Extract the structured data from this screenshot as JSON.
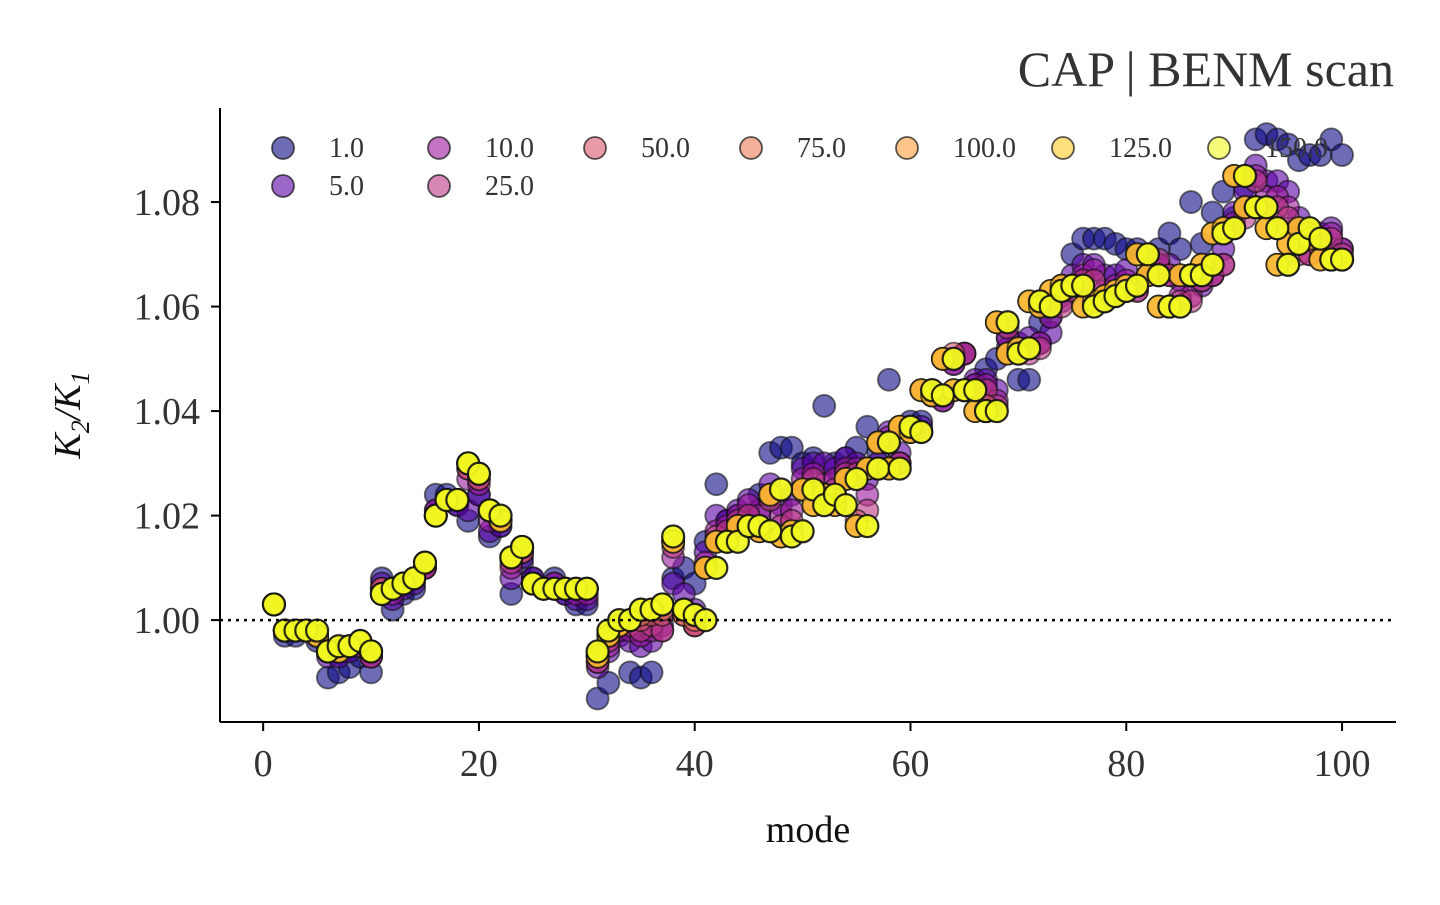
{
  "chart_data": {
    "type": "scatter",
    "title": "CAP | BENM scan",
    "xlabel": "mode",
    "ylabel": "K2/K1",
    "xlim": [
      -4,
      105
    ],
    "ylim": [
      0.9805,
      1.098
    ],
    "x_ticks": [
      0,
      20,
      40,
      60,
      80,
      100
    ],
    "y_ticks": [
      1.0,
      1.02,
      1.04,
      1.06,
      1.08
    ],
    "reference_line": {
      "y": 1.0,
      "style": "dotted",
      "color": "#000000"
    },
    "legend": {
      "placement": "top",
      "columns": 7
    },
    "grid": false,
    "series": [
      {
        "name": "1.0",
        "color": "#0d0887",
        "values": [
          1.003,
          0.997,
          0.997,
          0.998,
          0.996,
          0.989,
          0.99,
          0.991,
          0.993,
          0.99,
          1.008,
          1.002,
          1.005,
          1.006,
          1.01,
          1.024,
          1.024,
          1.022,
          1.019,
          1.024,
          1.016,
          1.018,
          1.005,
          1.011,
          1.008,
          1.006,
          1.008,
          1.005,
          1.003,
          1.003,
          0.985,
          0.988,
          0.998,
          0.99,
          0.989,
          0.99,
          1.001,
          1.008,
          1.01,
          1.007,
          1.015,
          1.026,
          1.019,
          1.02,
          1.02,
          1.024,
          1.032,
          1.033,
          1.033,
          1.03,
          1.031,
          1.041,
          1.03,
          1.031,
          1.033,
          1.037,
          1.032,
          1.046,
          1.03,
          1.038,
          1.038,
          1.044,
          1.043,
          1.05,
          1.051,
          1.045,
          1.048,
          1.05,
          1.054,
          1.046,
          1.046,
          1.057,
          1.058,
          1.064,
          1.07,
          1.073,
          1.073,
          1.073,
          1.072,
          1.071,
          1.071,
          1.066,
          1.071,
          1.074,
          1.071,
          1.08,
          1.072,
          1.078,
          1.082,
          1.077,
          1.083,
          1.092,
          1.093,
          1.092,
          1.091,
          1.088,
          1.089,
          1.089,
          1.092,
          1.089
        ]
      },
      {
        "name": "5.0",
        "color": "#5c01a6",
        "values": [
          1.003,
          0.998,
          0.998,
          0.998,
          0.997,
          0.993,
          0.993,
          0.994,
          0.995,
          0.993,
          1.007,
          1.004,
          1.006,
          1.007,
          1.01,
          1.021,
          1.023,
          1.022,
          1.021,
          1.024,
          1.017,
          1.018,
          1.008,
          1.012,
          1.008,
          1.006,
          1.007,
          1.005,
          1.004,
          1.004,
          0.991,
          0.994,
          0.997,
          0.996,
          0.995,
          0.996,
          0.999,
          1.007,
          1.005,
          1.002,
          1.013,
          1.02,
          1.019,
          1.021,
          1.023,
          1.021,
          1.026,
          1.022,
          1.024,
          1.029,
          1.03,
          1.03,
          1.029,
          1.031,
          1.03,
          1.027,
          1.03,
          1.036,
          1.032,
          1.036,
          1.037,
          1.043,
          1.042,
          1.049,
          1.051,
          1.046,
          1.046,
          1.044,
          1.052,
          1.053,
          1.054,
          1.053,
          1.055,
          1.062,
          1.066,
          1.068,
          1.068,
          1.066,
          1.066,
          1.067,
          1.064,
          1.066,
          1.068,
          1.068,
          1.065,
          1.066,
          1.064,
          1.066,
          1.071,
          1.078,
          1.082,
          1.087,
          1.084,
          1.084,
          1.082,
          1.077,
          1.074,
          1.074,
          1.075,
          1.071
        ]
      },
      {
        "name": "10.0",
        "color": "#9c179e",
        "values": [
          1.003,
          0.998,
          0.998,
          0.998,
          0.997,
          0.994,
          0.994,
          0.995,
          0.995,
          0.993,
          1.006,
          1.005,
          1.007,
          1.008,
          1.01,
          1.021,
          1.023,
          1.023,
          1.027,
          1.026,
          1.019,
          1.019,
          1.01,
          1.013,
          1.007,
          1.006,
          1.007,
          1.006,
          1.005,
          1.005,
          0.992,
          0.995,
          0.998,
          0.998,
          0.997,
          0.998,
          0.998,
          1.012,
          1.002,
          0.999,
          1.011,
          1.017,
          1.018,
          1.02,
          1.022,
          1.02,
          1.024,
          1.02,
          1.021,
          1.027,
          1.028,
          1.026,
          1.027,
          1.029,
          1.029,
          1.024,
          1.029,
          1.035,
          1.03,
          1.036,
          1.036,
          1.043,
          1.042,
          1.049,
          1.051,
          1.045,
          1.045,
          1.042,
          1.054,
          1.052,
          1.052,
          1.053,
          1.058,
          1.061,
          1.064,
          1.066,
          1.067,
          1.063,
          1.064,
          1.065,
          1.063,
          1.066,
          1.068,
          1.066,
          1.062,
          1.062,
          1.065,
          1.066,
          1.068,
          1.076,
          1.079,
          1.085,
          1.081,
          1.081,
          1.079,
          1.073,
          1.07,
          1.071,
          1.074,
          1.071
        ]
      },
      {
        "name": "25.0",
        "color": "#bd3786",
        "values": [
          1.003,
          0.998,
          0.998,
          0.998,
          0.997,
          0.994,
          0.994,
          0.995,
          0.995,
          0.993,
          1.006,
          1.006,
          1.007,
          1.008,
          1.01,
          1.02,
          1.023,
          1.023,
          1.029,
          1.027,
          1.021,
          1.019,
          1.011,
          1.013,
          1.007,
          1.006,
          1.006,
          1.006,
          1.006,
          1.006,
          0.992,
          0.996,
          0.999,
          0.999,
          0.998,
          0.999,
          0.998,
          1.014,
          1.001,
          0.999,
          1.01,
          1.016,
          1.017,
          1.019,
          1.02,
          1.018,
          1.023,
          1.018,
          1.019,
          1.025,
          1.027,
          1.024,
          1.025,
          1.028,
          1.028,
          1.021,
          1.029,
          1.034,
          1.03,
          1.037,
          1.036,
          1.044,
          1.043,
          1.05,
          1.051,
          1.044,
          1.044,
          1.041,
          1.056,
          1.051,
          1.051,
          1.052,
          1.06,
          1.06,
          1.063,
          1.065,
          1.065,
          1.061,
          1.062,
          1.063,
          1.063,
          1.066,
          1.069,
          1.066,
          1.061,
          1.061,
          1.065,
          1.066,
          1.068,
          1.075,
          1.077,
          1.084,
          1.079,
          1.079,
          1.077,
          1.07,
          1.07,
          1.071,
          1.073,
          1.07
        ]
      },
      {
        "name": "50.0",
        "color": "#d8576b",
        "values": [
          1.003,
          0.998,
          0.998,
          0.998,
          0.997,
          0.994,
          0.994,
          0.995,
          0.996,
          0.994,
          1.006,
          1.006,
          1.007,
          1.008,
          1.011,
          1.02,
          1.023,
          1.023,
          1.029,
          1.027,
          1.021,
          1.019,
          1.012,
          1.013,
          1.007,
          1.006,
          1.006,
          1.006,
          1.006,
          1.006,
          0.993,
          0.997,
          0.999,
          1.0,
          1.0,
          1.001,
          1.001,
          1.015,
          1.001,
          0.999,
          1.01,
          1.015,
          1.015,
          1.018,
          1.018,
          1.017,
          1.024,
          1.016,
          1.017,
          1.025,
          1.023,
          1.024,
          1.023,
          1.027,
          1.019,
          1.029,
          1.034,
          1.029,
          1.037,
          1.036,
          1.044,
          1.043,
          1.05,
          1.051,
          1.044,
          1.044,
          1.041,
          1.057,
          1.051,
          1.052,
          1.052,
          1.061,
          1.06,
          1.063,
          1.064,
          1.064,
          1.061,
          1.061,
          1.062,
          1.063,
          1.064,
          1.07,
          1.066,
          1.06,
          1.06,
          1.066,
          1.066,
          1.068,
          1.074,
          1.075,
          1.085,
          1.079,
          1.079,
          1.075,
          1.068,
          1.072,
          1.074,
          1.073,
          1.069,
          1.069
        ]
      },
      {
        "name": "75.0",
        "color": "#ed7953",
        "values": [
          1.003,
          0.998,
          0.998,
          0.998,
          0.997,
          0.994,
          0.994,
          0.995,
          0.996,
          0.994,
          1.005,
          1.006,
          1.007,
          1.008,
          1.011,
          1.02,
          1.023,
          1.023,
          1.03,
          1.028,
          1.021,
          1.019,
          1.012,
          1.014,
          1.007,
          1.006,
          1.006,
          1.006,
          1.006,
          1.006,
          0.993,
          0.997,
          0.999,
          1.0,
          1.001,
          1.002,
          1.002,
          1.015,
          1.001,
          1.0,
          1.01,
          1.015,
          1.015,
          1.018,
          1.018,
          1.017,
          1.024,
          1.016,
          1.017,
          1.025,
          1.022,
          1.024,
          1.022,
          1.027,
          1.018,
          1.029,
          1.034,
          1.029,
          1.037,
          1.036,
          1.044,
          1.043,
          1.05,
          1.044,
          1.044,
          1.04,
          1.04,
          1.057,
          1.051,
          1.052,
          1.061,
          1.06,
          1.063,
          1.064,
          1.064,
          1.06,
          1.061,
          1.062,
          1.063,
          1.064,
          1.07,
          1.066,
          1.06,
          1.06,
          1.066,
          1.066,
          1.068,
          1.074,
          1.075,
          1.085,
          1.079,
          1.079,
          1.075,
          1.068,
          1.072,
          1.075,
          1.073,
          1.069,
          1.069,
          1.069
        ]
      },
      {
        "name": "100.0",
        "color": "#fb9f3a",
        "values": [
          1.003,
          0.998,
          0.998,
          0.998,
          0.997,
          0.994,
          0.994,
          0.995,
          0.996,
          0.994,
          1.005,
          1.006,
          1.007,
          1.008,
          1.011,
          1.02,
          1.023,
          1.023,
          1.03,
          1.028,
          1.021,
          1.019,
          1.012,
          1.014,
          1.007,
          1.006,
          1.006,
          1.006,
          1.006,
          1.006,
          0.993,
          0.997,
          0.999,
          1.0,
          1.002,
          1.002,
          1.003,
          1.015,
          1.002,
          1.001,
          1.01,
          1.015,
          1.015,
          1.018,
          1.018,
          1.017,
          1.024,
          1.016,
          1.017,
          1.025,
          1.022,
          1.024,
          1.022,
          1.027,
          1.018,
          1.029,
          1.034,
          1.029,
          1.037,
          1.036,
          1.044,
          1.043,
          1.05,
          1.044,
          1.044,
          1.04,
          1.04,
          1.057,
          1.051,
          1.052,
          1.061,
          1.06,
          1.063,
          1.064,
          1.064,
          1.06,
          1.061,
          1.062,
          1.063,
          1.064,
          1.07,
          1.066,
          1.06,
          1.06,
          1.066,
          1.066,
          1.068,
          1.074,
          1.075,
          1.085,
          1.079,
          1.079,
          1.075,
          1.068,
          1.072,
          1.075,
          1.073,
          1.069,
          1.069,
          1.069
        ]
      },
      {
        "name": "125.0",
        "color": "#fdca26",
        "values": [
          1.003,
          0.998,
          0.998,
          0.998,
          0.997,
          0.994,
          0.994,
          0.995,
          0.996,
          0.994,
          1.005,
          1.006,
          1.007,
          1.008,
          1.011,
          1.02,
          1.023,
          1.023,
          1.03,
          1.028,
          1.021,
          1.019,
          1.012,
          1.014,
          1.007,
          1.006,
          1.006,
          1.006,
          1.006,
          1.006,
          0.993,
          0.997,
          0.999,
          1.0,
          1.002,
          1.002,
          1.003,
          1.015,
          1.002,
          1.001,
          1.01,
          1.015,
          1.015,
          1.018,
          1.018,
          1.017,
          1.024,
          1.016,
          1.017,
          1.025,
          1.022,
          1.024,
          1.022,
          1.027,
          1.018,
          1.029,
          1.034,
          1.029,
          1.037,
          1.036,
          1.044,
          1.043,
          1.05,
          1.044,
          1.044,
          1.04,
          1.04,
          1.057,
          1.051,
          1.052,
          1.061,
          1.06,
          1.063,
          1.064,
          1.064,
          1.06,
          1.061,
          1.062,
          1.063,
          1.064,
          1.07,
          1.066,
          1.06,
          1.06,
          1.066,
          1.066,
          1.068,
          1.074,
          1.075,
          1.085,
          1.079,
          1.079,
          1.075,
          1.068,
          1.072,
          1.075,
          1.073,
          1.069,
          1.069,
          1.069
        ]
      },
      {
        "name": "150.0",
        "color": "#f0f921",
        "values": [
          1.003,
          0.998,
          0.998,
          0.998,
          0.998,
          0.994,
          0.995,
          0.995,
          0.996,
          0.994,
          1.005,
          1.006,
          1.007,
          1.008,
          1.011,
          1.02,
          1.023,
          1.023,
          1.03,
          1.028,
          1.021,
          1.02,
          1.012,
          1.014,
          1.007,
          1.006,
          1.006,
          1.006,
          1.006,
          1.006,
          0.994,
          0.998,
          1.0,
          1.0,
          1.002,
          1.002,
          1.003,
          1.016,
          1.002,
          1.001,
          1.0,
          1.01,
          1.015,
          1.015,
          1.018,
          1.018,
          1.017,
          1.025,
          1.016,
          1.017,
          1.025,
          1.022,
          1.024,
          1.022,
          1.027,
          1.018,
          1.029,
          1.034,
          1.029,
          1.037,
          1.036,
          1.044,
          1.043,
          1.05,
          1.044,
          1.044,
          1.04,
          1.04,
          1.057,
          1.051,
          1.052,
          1.061,
          1.06,
          1.063,
          1.064,
          1.064,
          1.06,
          1.061,
          1.062,
          1.063,
          1.064,
          1.07,
          1.066,
          1.06,
          1.06,
          1.066,
          1.066,
          1.068,
          1.074,
          1.075,
          1.085,
          1.079,
          1.079,
          1.075,
          1.068,
          1.072,
          1.075,
          1.073,
          1.069,
          1.069
        ]
      }
    ]
  }
}
